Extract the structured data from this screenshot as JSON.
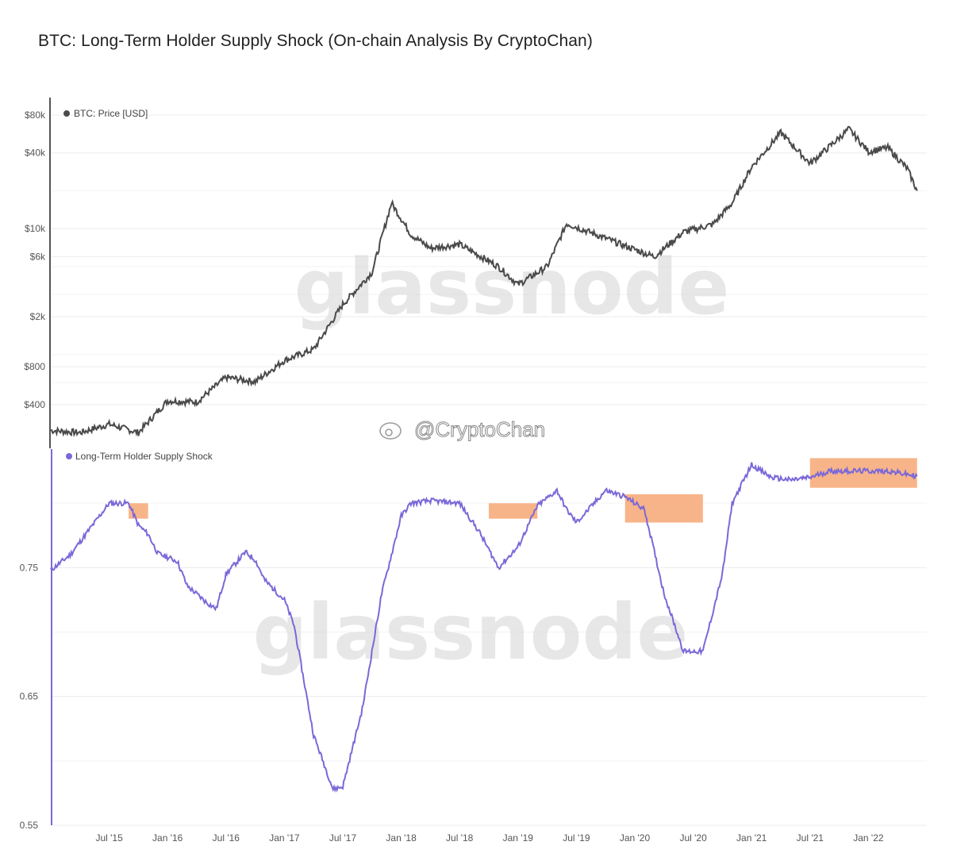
{
  "title": "BTC: Long-Term Holder Supply Shock (On-chain Analysis By CryptoChan)",
  "watermark": "glassnode",
  "handle": "@CryptoChan",
  "chart_data": [
    {
      "type": "line",
      "legend": "BTC: Price [USD]",
      "scale": "log",
      "color": "#4a4a4a",
      "yticks": [
        "$80k",
        "$40k",
        "$10k",
        "$6k",
        "$2k",
        "$800",
        "$400"
      ],
      "ytick_values": [
        80000,
        40000,
        10000,
        6000,
        2000,
        800,
        400
      ],
      "x": [
        "2015-01",
        "2015-04",
        "2015-07",
        "2015-10",
        "2016-01",
        "2016-04",
        "2016-07",
        "2016-10",
        "2017-01",
        "2017-04",
        "2017-07",
        "2017-10",
        "2017-12",
        "2018-02",
        "2018-04",
        "2018-07",
        "2018-11",
        "2019-01",
        "2019-04",
        "2019-06",
        "2019-09",
        "2019-12",
        "2020-03",
        "2020-06",
        "2020-09",
        "2020-11",
        "2021-01",
        "2021-04",
        "2021-07",
        "2021-09",
        "2021-11",
        "2022-01",
        "2022-03",
        "2022-05",
        "2022-06"
      ],
      "values": [
        250,
        240,
        280,
        240,
        430,
        420,
        660,
        610,
        900,
        1100,
        2500,
        4500,
        16000,
        9000,
        7000,
        7500,
        5000,
        3600,
        5000,
        11000,
        9000,
        7300,
        6000,
        9400,
        10800,
        16000,
        31000,
        58000,
        33000,
        45000,
        62000,
        41000,
        44000,
        30000,
        20000
      ]
    },
    {
      "type": "line",
      "legend": "Long-Term Holder Supply Shock",
      "color": "#7b68d8",
      "yticks": [
        "0.75",
        "0.65",
        "0.55"
      ],
      "ytick_values": [
        0.75,
        0.65,
        0.55
      ],
      "x": [
        "2015-01",
        "2015-03",
        "2015-05",
        "2015-07",
        "2015-09",
        "2015-10",
        "2015-11",
        "2015-12",
        "2016-02",
        "2016-03",
        "2016-05",
        "2016-06",
        "2016-07",
        "2016-09",
        "2016-10",
        "2016-11",
        "2017-01",
        "2017-02",
        "2017-04",
        "2017-06",
        "2017-07",
        "2017-09",
        "2017-11",
        "2018-01",
        "2018-02",
        "2018-04",
        "2018-07",
        "2018-09",
        "2018-11",
        "2019-01",
        "2019-03",
        "2019-05",
        "2019-06",
        "2019-07",
        "2019-08",
        "2019-10",
        "2019-12",
        "2020-02",
        "2020-04",
        "2020-06",
        "2020-08",
        "2020-10",
        "2020-11",
        "2021-01",
        "2021-03",
        "2021-05",
        "2021-07",
        "2021-09",
        "2021-10",
        "2021-12",
        "2022-03",
        "2022-06"
      ],
      "values": [
        0.748,
        0.76,
        0.78,
        0.8,
        0.8,
        0.783,
        0.776,
        0.761,
        0.755,
        0.736,
        0.723,
        0.718,
        0.745,
        0.762,
        0.756,
        0.74,
        0.725,
        0.705,
        0.62,
        0.578,
        0.58,
        0.64,
        0.73,
        0.79,
        0.8,
        0.802,
        0.8,
        0.778,
        0.75,
        0.766,
        0.798,
        0.81,
        0.795,
        0.785,
        0.793,
        0.81,
        0.805,
        0.795,
        0.73,
        0.685,
        0.685,
        0.745,
        0.8,
        0.83,
        0.82,
        0.818,
        0.82,
        0.825,
        0.825,
        0.825,
        0.825,
        0.821
      ]
    }
  ],
  "highlights": [
    {
      "start": "2015-09",
      "end": "2015-11",
      "top": 0.8,
      "bottom": 0.788
    },
    {
      "start": "2018-10",
      "end": "2019-03",
      "top": 0.8,
      "bottom": 0.788
    },
    {
      "start": "2019-12",
      "end": "2020-08",
      "top": 0.807,
      "bottom": 0.785
    },
    {
      "start": "2021-07",
      "end": "2022-06",
      "top": 0.835,
      "bottom": 0.812
    }
  ],
  "xticks": [
    "Jul '15",
    "Jan '16",
    "Jul '16",
    "Jan '17",
    "Jul '17",
    "Jan '18",
    "Jul '18",
    "Jan '19",
    "Jul '19",
    "Jan '20",
    "Jul '20",
    "Jan '21",
    "Jul '21",
    "Jan '22"
  ],
  "xtick_dates": [
    "2015-07",
    "2016-01",
    "2016-07",
    "2017-01",
    "2017-07",
    "2018-01",
    "2018-07",
    "2019-01",
    "2019-07",
    "2020-01",
    "2020-07",
    "2021-01",
    "2021-07",
    "2022-01"
  ]
}
